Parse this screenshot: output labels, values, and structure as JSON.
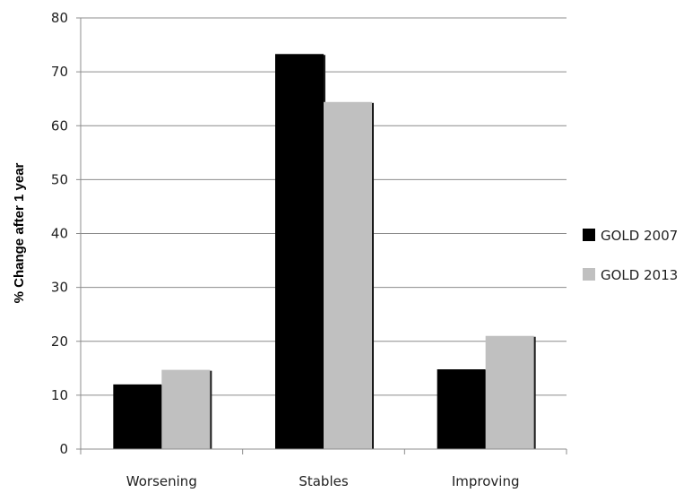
{
  "chart_data": {
    "type": "bar",
    "categories": [
      "Worsening",
      "Stables",
      "Improving"
    ],
    "series": [
      {
        "name": "GOLD 2007",
        "values": [
          12,
          73.3,
          14.8
        ],
        "color": "#000000"
      },
      {
        "name": "GOLD 2013",
        "values": [
          14.7,
          64.4,
          21
        ],
        "color": "#c0c0c0"
      }
    ],
    "ylabel": "% Change after 1 year",
    "ylim": [
      0,
      80
    ],
    "yticks": [
      0,
      10,
      20,
      30,
      40,
      50,
      60,
      70,
      80
    ],
    "grid": true,
    "legend_position": "right"
  }
}
